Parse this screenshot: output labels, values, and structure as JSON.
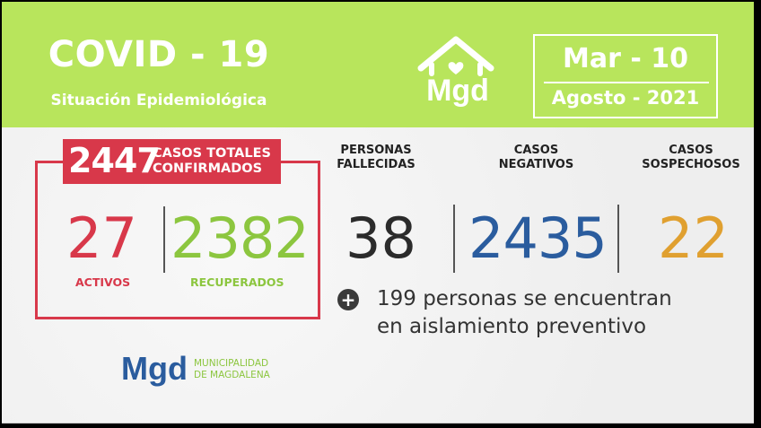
{
  "header": {
    "title": "COVID - 19",
    "subtitle": "Situación Epidemiológica",
    "logo_text": "Mgd",
    "date_line1": "Mar - 10",
    "date_line2": "Agosto - 2021"
  },
  "totals": {
    "total_number": "2447",
    "total_label_line1": "CASOS TOTALES",
    "total_label_line2": "CONFIRMADOS",
    "activos_value": "27",
    "activos_label": "ACTIVOS",
    "recuperados_value": "2382",
    "recuperados_label": "RECUPERADOS"
  },
  "stats": {
    "fallecidas_label_line1": "PERSONAS",
    "fallecidas_label_line2": "FALLECIDAS",
    "fallecidas_value": "38",
    "negativos_label_line1": "CASOS",
    "negativos_label_line2": "NEGATIVOS",
    "negativos_value": "2435",
    "sospechosos_label_line1": "CASOS",
    "sospechosos_label_line2": "SOSPECHOSOS",
    "sospechosos_value": "22"
  },
  "note": {
    "line1": "199 personas se encuentran",
    "line2": "en aislamiento preventivo"
  },
  "footer": {
    "logo_text": "Mgd",
    "muni_line1": "MUNICIPALIDAD",
    "muni_line2": "DE MAGDALENA"
  },
  "colors": {
    "header_green": "#b8e55c",
    "red": "#d8384a",
    "green": "#8cc63f",
    "blue": "#2a5c9e",
    "orange": "#e0a030",
    "dark": "#2b2b2b"
  }
}
